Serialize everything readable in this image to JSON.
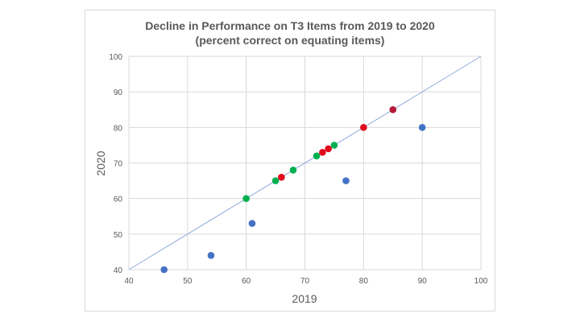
{
  "chart_data": {
    "type": "scatter",
    "title": "Decline in Performance on T3 Items from 2019 to 2020",
    "subtitle": "(percent correct on equating items)",
    "xlabel": "2019",
    "ylabel": "2020",
    "xlim": [
      40,
      100
    ],
    "ylim": [
      40,
      100
    ],
    "xticks": [
      40,
      50,
      60,
      70,
      80,
      90,
      100
    ],
    "yticks": [
      40,
      50,
      60,
      70,
      80,
      90,
      100
    ],
    "grid": true,
    "reference_line": {
      "from": [
        40,
        40
      ],
      "to": [
        100,
        100
      ],
      "color": "#8faadc"
    },
    "series": [
      {
        "color": "#4472c4",
        "points": [
          [
            46,
            40
          ],
          [
            54,
            44
          ],
          [
            61,
            53
          ],
          [
            77,
            65
          ],
          [
            90,
            80
          ],
          [
            85,
            85
          ]
        ]
      },
      {
        "color": "#00b050",
        "points": [
          [
            60,
            60
          ],
          [
            65,
            65
          ],
          [
            68,
            68
          ],
          [
            72,
            72
          ],
          [
            75,
            75
          ]
        ]
      },
      {
        "color": "#e00b1c",
        "points": [
          [
            66,
            66
          ],
          [
            73,
            73
          ],
          [
            74,
            74
          ],
          [
            80,
            80
          ]
        ]
      },
      {
        "color": "#b8193a",
        "points": [
          [
            85,
            85
          ]
        ]
      }
    ]
  }
}
